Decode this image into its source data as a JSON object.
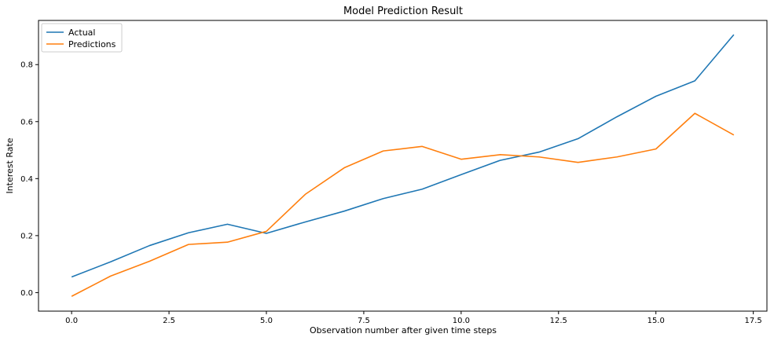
{
  "chart_data": {
    "type": "line",
    "title": "Model Prediction Result",
    "xlabel": "Observation number after given time steps",
    "ylabel": "Interest Rate",
    "xlim": [
      -0.85,
      17.85
    ],
    "ylim": [
      -0.065,
      0.955
    ],
    "xticks": [
      0.0,
      2.5,
      5.0,
      7.5,
      10.0,
      12.5,
      15.0,
      17.5
    ],
    "xtick_labels": [
      "0.0",
      "2.5",
      "5.0",
      "7.5",
      "10.0",
      "12.5",
      "15.0",
      "17.5"
    ],
    "yticks": [
      0.0,
      0.2,
      0.4,
      0.6,
      0.8
    ],
    "ytick_labels": [
      "0.0",
      "0.2",
      "0.4",
      "0.6",
      "0.8"
    ],
    "grid": false,
    "legend_position": "top-left",
    "x": [
      0,
      1,
      2,
      3,
      4,
      5,
      6,
      7,
      8,
      9,
      10,
      11,
      12,
      13,
      14,
      15,
      16,
      17
    ],
    "series": [
      {
        "name": "Actual",
        "color": "#1f77b4",
        "values": [
          0.055,
          0.108,
          0.165,
          0.21,
          0.24,
          0.208,
          0.248,
          0.286,
          0.33,
          0.363,
          0.414,
          0.464,
          0.493,
          0.54,
          0.617,
          0.689,
          0.743,
          0.905
        ]
      },
      {
        "name": "Predictions",
        "color": "#ff7f0e",
        "values": [
          -0.013,
          0.058,
          0.11,
          0.169,
          0.177,
          0.215,
          0.345,
          0.438,
          0.497,
          0.513,
          0.468,
          0.484,
          0.476,
          0.457,
          0.476,
          0.504,
          0.629,
          0.553
        ]
      }
    ]
  }
}
